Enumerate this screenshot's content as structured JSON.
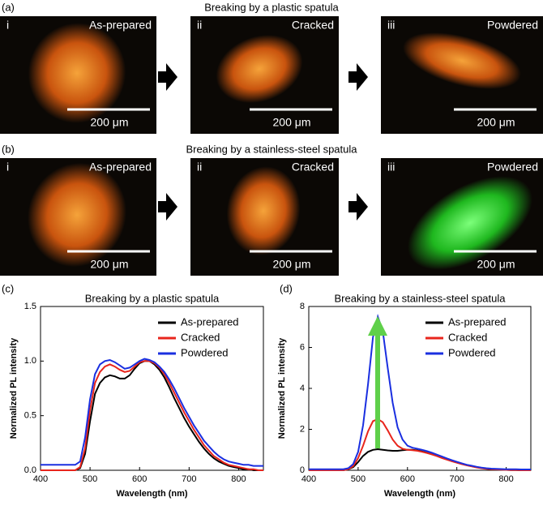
{
  "photo_rows": [
    {
      "label": "(a)",
      "title": "Breaking by a plastic spatula",
      "panels": [
        {
          "index": "i",
          "state": "As-prepared",
          "scale": "200 μm"
        },
        {
          "index": "ii",
          "state": "Cracked",
          "scale": "200 μm"
        },
        {
          "index": "iii",
          "state": "Powdered",
          "scale": "200 μm"
        }
      ]
    },
    {
      "label": "(b)",
      "title": "Breaking by a stainless-steel spatula",
      "panels": [
        {
          "index": "i",
          "state": "As-prepared",
          "scale": "200 μm"
        },
        {
          "index": "ii",
          "state": "Cracked",
          "scale": "200 μm"
        },
        {
          "index": "iii",
          "state": "Powdered",
          "scale": "200 μm"
        }
      ]
    }
  ],
  "chart_data": [
    {
      "type": "line",
      "label": "(c)",
      "title": "Breaking by a plastic spatula",
      "x_label": "Wavelength (nm)",
      "y_label": "Normalized PL intensity",
      "xlim": [
        400,
        850
      ],
      "xticks": [
        400,
        500,
        600,
        700,
        800
      ],
      "ylim": [
        0,
        1.5
      ],
      "yticks": [
        {
          "value": 0,
          "label": "0.0"
        },
        0.5,
        {
          "value": 1,
          "label": "1.0"
        },
        1.5
      ],
      "legend": "top-right",
      "x": [
        400,
        410,
        420,
        430,
        440,
        450,
        460,
        470,
        480,
        490,
        500,
        510,
        520,
        530,
        540,
        550,
        560,
        570,
        580,
        590,
        600,
        610,
        620,
        630,
        640,
        650,
        660,
        670,
        680,
        690,
        700,
        710,
        720,
        730,
        740,
        750,
        760,
        770,
        780,
        790,
        800,
        810,
        820,
        830,
        840,
        850
      ],
      "series": [
        {
          "name": "As-prepared",
          "color": "#000000",
          "values": [
            0,
            0,
            0,
            0,
            0,
            0,
            0,
            0,
            0.02,
            0.15,
            0.45,
            0.7,
            0.8,
            0.85,
            0.87,
            0.86,
            0.84,
            0.84,
            0.87,
            0.93,
            0.98,
            1.0,
            1.0,
            0.97,
            0.92,
            0.85,
            0.76,
            0.66,
            0.57,
            0.48,
            0.4,
            0.33,
            0.26,
            0.2,
            0.15,
            0.11,
            0.08,
            0.06,
            0.04,
            0.03,
            0.02,
            0.01,
            0.01,
            0,
            0,
            0
          ]
        },
        {
          "name": "Cracked",
          "color": "#e8251c",
          "values": [
            0,
            0,
            0,
            0,
            0,
            0,
            0,
            0,
            0.03,
            0.2,
            0.55,
            0.8,
            0.9,
            0.95,
            0.97,
            0.95,
            0.92,
            0.9,
            0.91,
            0.95,
            0.99,
            1.0,
            1.0,
            0.98,
            0.94,
            0.88,
            0.8,
            0.71,
            0.62,
            0.53,
            0.45,
            0.37,
            0.3,
            0.23,
            0.18,
            0.13,
            0.1,
            0.07,
            0.05,
            0.04,
            0.03,
            0.02,
            0.01,
            0.01,
            0,
            0
          ]
        },
        {
          "name": "Powdered",
          "color": "#1a2fe0",
          "values": [
            0.05,
            0.05,
            0.05,
            0.05,
            0.05,
            0.05,
            0.05,
            0.05,
            0.08,
            0.3,
            0.65,
            0.88,
            0.97,
            1.0,
            1.01,
            0.99,
            0.96,
            0.93,
            0.94,
            0.97,
            1.0,
            1.02,
            1.01,
            0.99,
            0.95,
            0.9,
            0.83,
            0.75,
            0.66,
            0.57,
            0.49,
            0.41,
            0.34,
            0.27,
            0.22,
            0.17,
            0.13,
            0.1,
            0.08,
            0.07,
            0.06,
            0.05,
            0.05,
            0.04,
            0.04,
            0.04
          ]
        }
      ]
    },
    {
      "type": "line",
      "label": "(d)",
      "title": "Breaking by a stainless-steel spatula",
      "x_label": "Wavelength (nm)",
      "y_label": "Normalized PL intensity",
      "xlim": [
        400,
        850
      ],
      "xticks": [
        400,
        500,
        600,
        700,
        800
      ],
      "ylim": [
        0,
        8
      ],
      "yticks": [
        0,
        2,
        4,
        6,
        8
      ],
      "legend": "top-right",
      "x": [
        400,
        410,
        420,
        430,
        440,
        450,
        460,
        470,
        480,
        490,
        500,
        510,
        520,
        530,
        540,
        550,
        560,
        570,
        580,
        590,
        600,
        610,
        620,
        630,
        640,
        650,
        660,
        670,
        680,
        690,
        700,
        710,
        720,
        730,
        740,
        750,
        760,
        770,
        780,
        790,
        800,
        810,
        820,
        830,
        840,
        850
      ],
      "series": [
        {
          "name": "As-prepared",
          "color": "#000000",
          "values": [
            0,
            0,
            0,
            0,
            0,
            0,
            0,
            0,
            0.05,
            0.15,
            0.4,
            0.7,
            0.9,
            1.0,
            1.03,
            1.0,
            0.97,
            0.95,
            0.95,
            0.98,
            1.0,
            1.0,
            0.97,
            0.92,
            0.85,
            0.78,
            0.7,
            0.61,
            0.53,
            0.45,
            0.38,
            0.31,
            0.25,
            0.2,
            0.15,
            0.11,
            0.08,
            0.06,
            0.04,
            0.03,
            0.02,
            0.01,
            0.01,
            0,
            0,
            0
          ]
        },
        {
          "name": "Cracked",
          "color": "#e8251c",
          "values": [
            0,
            0,
            0,
            0,
            0,
            0,
            0,
            0,
            0.05,
            0.2,
            0.6,
            1.2,
            1.9,
            2.4,
            2.5,
            2.35,
            1.95,
            1.5,
            1.2,
            1.05,
            1.0,
            0.98,
            0.95,
            0.9,
            0.84,
            0.77,
            0.69,
            0.6,
            0.52,
            0.44,
            0.37,
            0.3,
            0.24,
            0.19,
            0.14,
            0.1,
            0.07,
            0.05,
            0.04,
            0.03,
            0.02,
            0.01,
            0.01,
            0,
            0,
            0
          ]
        },
        {
          "name": "Powdered",
          "color": "#1a2fe0",
          "values": [
            0.05,
            0.05,
            0.05,
            0.05,
            0.05,
            0.05,
            0.05,
            0.05,
            0.1,
            0.3,
            0.9,
            2.2,
            4.2,
            6.5,
            7.5,
            6.8,
            5.0,
            3.3,
            2.1,
            1.5,
            1.2,
            1.1,
            1.05,
            1.0,
            0.93,
            0.85,
            0.76,
            0.67,
            0.58,
            0.49,
            0.41,
            0.34,
            0.27,
            0.22,
            0.17,
            0.13,
            0.1,
            0.08,
            0.07,
            0.06,
            0.05,
            0.05,
            0.05,
            0.04,
            0.04,
            0.04
          ]
        }
      ]
    }
  ]
}
